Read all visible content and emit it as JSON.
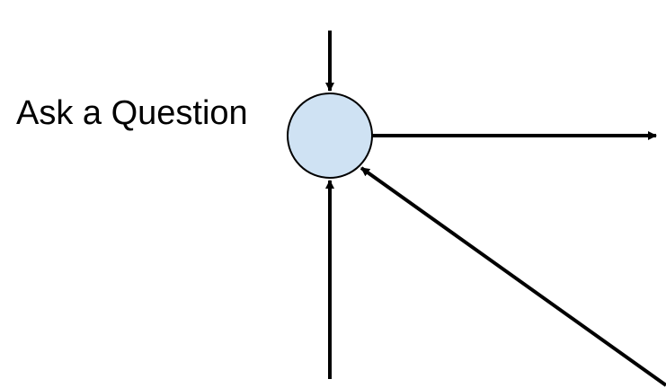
{
  "diagram": {
    "node": {
      "label": "Ask a Question"
    },
    "colors": {
      "node_fill": "#cfe2f3",
      "node_stroke": "#000000",
      "arrow": "#000000",
      "text": "#000000",
      "background": "#ffffff"
    }
  }
}
